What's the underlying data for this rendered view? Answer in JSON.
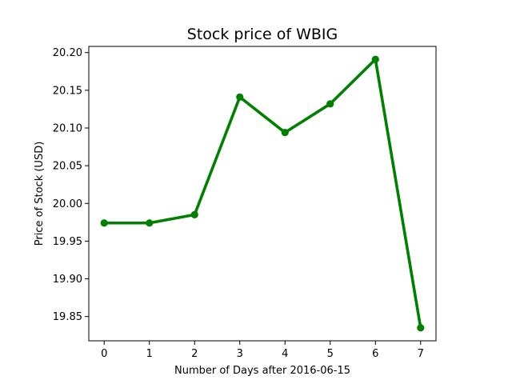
{
  "chart_data": {
    "type": "line",
    "title": "Stock price of WBIG",
    "xlabel": "Number of Days after 2016-06-15",
    "ylabel": "Price of Stock (USD)",
    "x": [
      0,
      1,
      2,
      3,
      4,
      5,
      6,
      7
    ],
    "xticks": [
      "0",
      "1",
      "2",
      "3",
      "4",
      "5",
      "6",
      "7"
    ],
    "yticks": [
      "19.85",
      "19.90",
      "19.95",
      "20.00",
      "20.05",
      "20.10",
      "20.15",
      "20.20"
    ],
    "ytick_values": [
      19.85,
      19.9,
      19.95,
      20.0,
      20.05,
      20.1,
      20.15,
      20.2
    ],
    "xlim": [
      -0.34,
      7.34
    ],
    "ylim": [
      19.8178,
      20.2082
    ],
    "grid": false,
    "series": [
      {
        "values": [
          19.974,
          19.974,
          19.985,
          20.141,
          20.094,
          20.132,
          20.191,
          19.835
        ],
        "color": "#008000",
        "marker": "circle"
      }
    ]
  }
}
